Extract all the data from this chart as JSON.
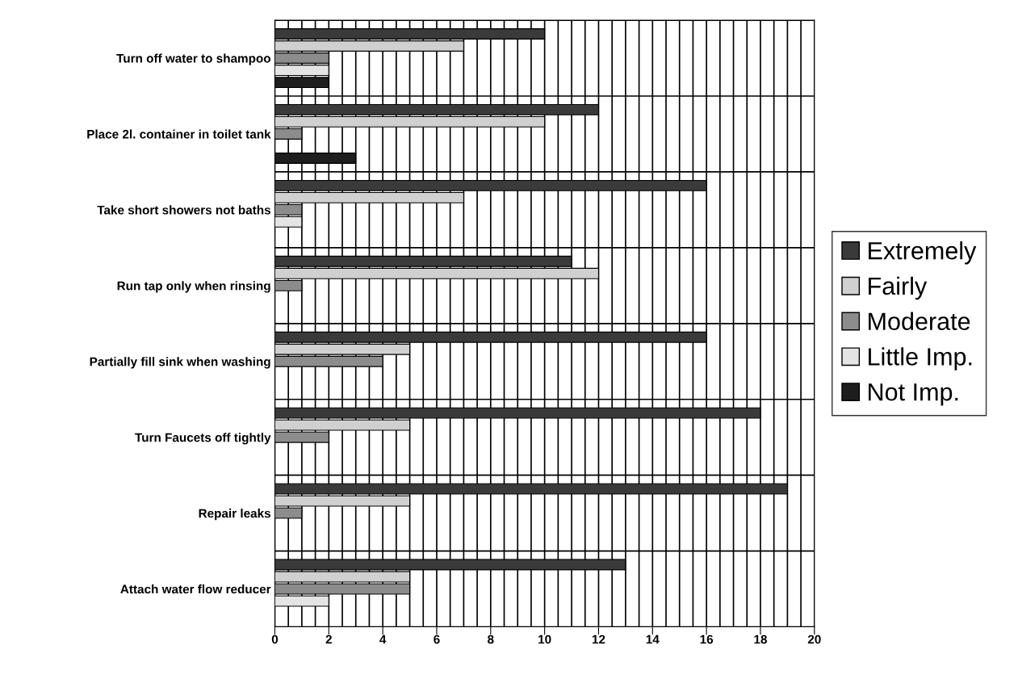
{
  "chart_data": {
    "type": "bar",
    "orientation": "horizontal",
    "categories": [
      "Turn off water to shampoo",
      "Place 2l. container in toilet tank",
      "Take short showers not baths",
      "Run tap only when rinsing",
      "Partially fill sink when washing",
      "Turn Faucets off tightly",
      "Repair leaks",
      "Attach water flow reducer"
    ],
    "series": [
      {
        "name": "Extremely",
        "color": "#3a3a3a",
        "values": [
          10,
          12,
          16,
          11,
          16,
          18,
          19,
          13
        ]
      },
      {
        "name": "Fairly",
        "color": "#d0d0d0",
        "values": [
          7,
          10,
          7,
          12,
          5,
          5,
          5,
          5
        ]
      },
      {
        "name": "Moderate",
        "color": "#8c8c8c",
        "values": [
          2,
          1,
          1,
          1,
          4,
          2,
          1,
          5
        ]
      },
      {
        "name": "Little Imp.",
        "color": "#e4e4e4",
        "values": [
          2,
          0,
          1,
          0,
          0,
          0,
          0,
          2
        ]
      },
      {
        "name": "Not Imp.",
        "color": "#1e1e1e",
        "values": [
          2,
          3,
          0,
          0,
          0,
          0,
          0,
          0
        ]
      }
    ],
    "xlim": [
      0,
      20
    ],
    "xticks": [
      0,
      {
        "value": 0.5,
        "label": null
      },
      {
        "value": 1,
        "label": null
      },
      {
        "value": 1.5,
        "label": null
      },
      2,
      {
        "value": 2.5,
        "label": null
      },
      {
        "value": 3,
        "label": null
      },
      {
        "value": 3.5,
        "label": null
      },
      4,
      {
        "value": 4.5,
        "label": null
      },
      {
        "value": 5,
        "label": null
      },
      {
        "value": 5.5,
        "label": null
      },
      6,
      {
        "value": 6.5,
        "label": null
      },
      {
        "value": 7,
        "label": null
      },
      {
        "value": 7.5,
        "label": null
      },
      8,
      {
        "value": 8.5,
        "label": null
      },
      {
        "value": 9,
        "label": null
      },
      {
        "value": 9.5,
        "label": null
      },
      10,
      {
        "value": 10.5,
        "label": null
      },
      {
        "value": 11,
        "label": null
      },
      {
        "value": 11.5,
        "label": null
      },
      12,
      {
        "value": 12.5,
        "label": null
      },
      {
        "value": 13,
        "label": null
      },
      {
        "value": 13.5,
        "label": null
      },
      14,
      {
        "value": 14.5,
        "label": null
      },
      {
        "value": 15,
        "label": null
      },
      {
        "value": 15.5,
        "label": null
      },
      16,
      {
        "value": 16.5,
        "label": null
      },
      {
        "value": 17,
        "label": null
      },
      {
        "value": 17.5,
        "label": null
      },
      18,
      {
        "value": 18.5,
        "label": null
      },
      {
        "value": 19,
        "label": null
      },
      {
        "value": 19.5,
        "label": null
      },
      20
    ],
    "grid": true,
    "legend": "right"
  }
}
